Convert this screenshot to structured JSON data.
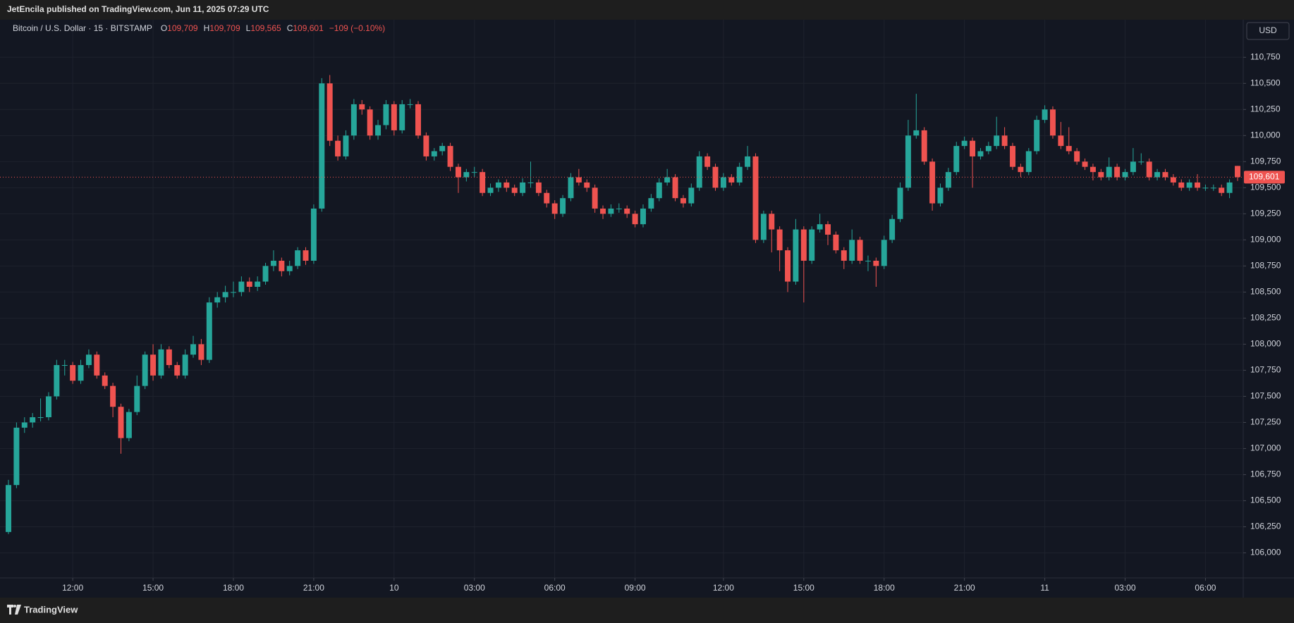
{
  "header": {
    "publisher": "JetEncila published on TradingView.com, Jun 11, 2025 07:29 UTC",
    "currency_button": "USD"
  },
  "footer": {
    "brand": "TradingView"
  },
  "chart_data": {
    "type": "candlestick",
    "title": "Bitcoin / U.S. Dollar · 15 · BITSTAMP",
    "legend": [
      {
        "key": "O",
        "value": "109,709"
      },
      {
        "key": "H",
        "value": "109,709"
      },
      {
        "key": "L",
        "value": "109,565"
      },
      {
        "key": "C",
        "value": "109,601"
      }
    ],
    "change": "−109 (−0.10%)",
    "up_color": "#26a69a",
    "down_color": "#ef5350",
    "grid": true,
    "last_price": {
      "value": 109601,
      "label": "109,601"
    },
    "ylim": [
      105760,
      111110
    ],
    "yticks": [
      {
        "value": 106000,
        "label": "106,000"
      },
      {
        "value": 106250,
        "label": "106,250"
      },
      {
        "value": 106500,
        "label": "106,500"
      },
      {
        "value": 106750,
        "label": "106,750"
      },
      {
        "value": 107000,
        "label": "107,000"
      },
      {
        "value": 107250,
        "label": "107,250"
      },
      {
        "value": 107500,
        "label": "107,500"
      },
      {
        "value": 107750,
        "label": "107,750"
      },
      {
        "value": 108000,
        "label": "108,000"
      },
      {
        "value": 108250,
        "label": "108,250"
      },
      {
        "value": 108500,
        "label": "108,500"
      },
      {
        "value": 108750,
        "label": "108,750"
      },
      {
        "value": 109000,
        "label": "109,000"
      },
      {
        "value": 109250,
        "label": "109,250"
      },
      {
        "value": 109500,
        "label": "109,500"
      },
      {
        "value": 109750,
        "label": "109,750"
      },
      {
        "value": 110000,
        "label": "110,000"
      },
      {
        "value": 110250,
        "label": "110,250"
      },
      {
        "value": 110500,
        "label": "110,500"
      },
      {
        "value": 110750,
        "label": "110,750"
      }
    ],
    "xticks": [
      {
        "value": 8,
        "label": "12:00"
      },
      {
        "value": 18,
        "label": "15:00"
      },
      {
        "value": 28,
        "label": "18:00"
      },
      {
        "value": 38,
        "label": "21:00"
      },
      {
        "value": 48,
        "label": "10"
      },
      {
        "value": 58,
        "label": "03:00"
      },
      {
        "value": 68,
        "label": "06:00"
      },
      {
        "value": 78,
        "label": "09:00"
      },
      {
        "value": 89,
        "label": "12:00"
      },
      {
        "value": 99,
        "label": "15:00"
      },
      {
        "value": 109,
        "label": "18:00"
      },
      {
        "value": 119,
        "label": "21:00"
      },
      {
        "value": 129,
        "label": "11"
      },
      {
        "value": 139,
        "label": "03:00"
      },
      {
        "value": 149,
        "label": "06:00"
      }
    ],
    "ohlc": [
      [
        106200,
        106700,
        106180,
        106650
      ],
      [
        106650,
        107250,
        106620,
        107200
      ],
      [
        107200,
        107300,
        107150,
        107250
      ],
      [
        107250,
        107340,
        107200,
        107300
      ],
      [
        107300,
        107480,
        107260,
        107300
      ],
      [
        107300,
        107540,
        107270,
        107500
      ],
      [
        107500,
        107850,
        107470,
        107800
      ],
      [
        107800,
        107850,
        107700,
        107800
      ],
      [
        107800,
        107830,
        107620,
        107650
      ],
      [
        107650,
        107850,
        107620,
        107800
      ],
      [
        107800,
        107950,
        107770,
        107900
      ],
      [
        107900,
        107930,
        107670,
        107700
      ],
      [
        107700,
        107730,
        107570,
        107600
      ],
      [
        107600,
        107630,
        107300,
        107400
      ],
      [
        107400,
        107430,
        106950,
        107100
      ],
      [
        107100,
        107380,
        107070,
        107350
      ],
      [
        107350,
        107700,
        107320,
        107600
      ],
      [
        107600,
        107930,
        107570,
        107900
      ],
      [
        107900,
        108000,
        107650,
        107700
      ],
      [
        107700,
        108000,
        107670,
        107950
      ],
      [
        107950,
        107980,
        107770,
        107800
      ],
      [
        107800,
        107830,
        107670,
        107700
      ],
      [
        107700,
        107950,
        107670,
        107900
      ],
      [
        107900,
        108080,
        107870,
        108000
      ],
      [
        108000,
        108050,
        107800,
        107850
      ],
      [
        107850,
        108450,
        107820,
        108400
      ],
      [
        108400,
        108500,
        108350,
        108450
      ],
      [
        108450,
        108560,
        108400,
        108500
      ],
      [
        108500,
        108600,
        108450,
        108500
      ],
      [
        108500,
        108650,
        108460,
        108600
      ],
      [
        108600,
        108640,
        108500,
        108550
      ],
      [
        108550,
        108650,
        108510,
        108600
      ],
      [
        108600,
        108780,
        108570,
        108750
      ],
      [
        108750,
        108900,
        108700,
        108800
      ],
      [
        108800,
        108830,
        108650,
        108700
      ],
      [
        108700,
        108800,
        108660,
        108750
      ],
      [
        108750,
        108930,
        108720,
        108900
      ],
      [
        108900,
        108930,
        108760,
        108800
      ],
      [
        108800,
        109340,
        108770,
        109300
      ],
      [
        109300,
        110550,
        109270,
        110500
      ],
      [
        110500,
        110580,
        109900,
        109950
      ],
      [
        109950,
        110000,
        109760,
        109800
      ],
      [
        109800,
        110050,
        109770,
        110000
      ],
      [
        110000,
        110350,
        109960,
        110300
      ],
      [
        110300,
        110340,
        110200,
        110250
      ],
      [
        110250,
        110280,
        109960,
        110000
      ],
      [
        110000,
        110150,
        109960,
        110100
      ],
      [
        110100,
        110340,
        110060,
        110300
      ],
      [
        110300,
        110330,
        110000,
        110050
      ],
      [
        110050,
        110340,
        110020,
        110300
      ],
      [
        110300,
        110350,
        110260,
        110300
      ],
      [
        110300,
        110330,
        109970,
        110000
      ],
      [
        110000,
        110030,
        109760,
        109800
      ],
      [
        109800,
        109880,
        109760,
        109850
      ],
      [
        109850,
        109930,
        109810,
        109900
      ],
      [
        109900,
        109930,
        109660,
        109700
      ],
      [
        109700,
        109730,
        109450,
        109600
      ],
      [
        109600,
        109680,
        109560,
        109650
      ],
      [
        109650,
        109700,
        109600,
        109650
      ],
      [
        109650,
        109680,
        109420,
        109450
      ],
      [
        109450,
        109540,
        109420,
        109500
      ],
      [
        109500,
        109580,
        109460,
        109550
      ],
      [
        109550,
        109580,
        109460,
        109500
      ],
      [
        109500,
        109530,
        109420,
        109450
      ],
      [
        109450,
        109590,
        109420,
        109550
      ],
      [
        109550,
        109750,
        109500,
        109550
      ],
      [
        109550,
        109580,
        109420,
        109450
      ],
      [
        109450,
        109480,
        109310,
        109350
      ],
      [
        109350,
        109380,
        109200,
        109250
      ],
      [
        109250,
        109430,
        109220,
        109400
      ],
      [
        109400,
        109640,
        109370,
        109600
      ],
      [
        109600,
        109680,
        109520,
        109550
      ],
      [
        109550,
        109580,
        109460,
        109500
      ],
      [
        109500,
        109530,
        109260,
        109300
      ],
      [
        109300,
        109330,
        109200,
        109250
      ],
      [
        109250,
        109340,
        109220,
        109300
      ],
      [
        109300,
        109350,
        109260,
        109300
      ],
      [
        109300,
        109330,
        109210,
        109250
      ],
      [
        109250,
        109280,
        109120,
        109150
      ],
      [
        109150,
        109340,
        109120,
        109300
      ],
      [
        109300,
        109440,
        109270,
        109400
      ],
      [
        109400,
        109590,
        109370,
        109550
      ],
      [
        109550,
        109680,
        109520,
        109600
      ],
      [
        109600,
        109630,
        109370,
        109400
      ],
      [
        109400,
        109430,
        109310,
        109350
      ],
      [
        109350,
        109540,
        109320,
        109500
      ],
      [
        109500,
        109850,
        109470,
        109800
      ],
      [
        109800,
        109830,
        109670,
        109700
      ],
      [
        109700,
        109730,
        109470,
        109500
      ],
      [
        109500,
        109640,
        109470,
        109600
      ],
      [
        109600,
        109630,
        109520,
        109550
      ],
      [
        109550,
        109740,
        109520,
        109700
      ],
      [
        109700,
        109900,
        109670,
        109800
      ],
      [
        109800,
        109830,
        108970,
        109000
      ],
      [
        109000,
        109280,
        108970,
        109250
      ],
      [
        109250,
        109280,
        108880,
        109100
      ],
      [
        109100,
        109130,
        108700,
        108900
      ],
      [
        108900,
        108930,
        108500,
        108600
      ],
      [
        108600,
        109200,
        108570,
        109100
      ],
      [
        109100,
        109130,
        108400,
        108800
      ],
      [
        108800,
        109130,
        108770,
        109100
      ],
      [
        109100,
        109250,
        109070,
        109150
      ],
      [
        109150,
        109180,
        108950,
        109050
      ],
      [
        109050,
        109080,
        108870,
        108900
      ],
      [
        108900,
        108930,
        108720,
        108800
      ],
      [
        108800,
        109100,
        108770,
        109000
      ],
      [
        109000,
        109030,
        108770,
        108800
      ],
      [
        108800,
        108850,
        108700,
        108800
      ],
      [
        108800,
        108830,
        108550,
        108750
      ],
      [
        108750,
        109040,
        108720,
        109000
      ],
      [
        109000,
        109240,
        108970,
        109200
      ],
      [
        109200,
        109550,
        109170,
        109500
      ],
      [
        109500,
        110150,
        109470,
        110000
      ],
      [
        110000,
        110400,
        109970,
        110050
      ],
      [
        110050,
        110080,
        109720,
        109750
      ],
      [
        109750,
        109780,
        109280,
        109350
      ],
      [
        109350,
        109540,
        109320,
        109500
      ],
      [
        109500,
        109690,
        109470,
        109650
      ],
      [
        109650,
        109940,
        109620,
        109900
      ],
      [
        109900,
        109990,
        109870,
        109950
      ],
      [
        109950,
        109980,
        109500,
        109800
      ],
      [
        109800,
        109880,
        109770,
        109850
      ],
      [
        109850,
        109940,
        109820,
        109900
      ],
      [
        109900,
        110180,
        109870,
        110000
      ],
      [
        110000,
        110080,
        109870,
        109900
      ],
      [
        109900,
        109930,
        109670,
        109700
      ],
      [
        109700,
        109730,
        109600,
        109650
      ],
      [
        109650,
        109880,
        109620,
        109850
      ],
      [
        109850,
        110190,
        109820,
        110150
      ],
      [
        110150,
        110290,
        110120,
        110250
      ],
      [
        110250,
        110280,
        109970,
        110000
      ],
      [
        110000,
        110130,
        109870,
        109900
      ],
      [
        109900,
        110080,
        109820,
        109850
      ],
      [
        109850,
        109880,
        109720,
        109750
      ],
      [
        109750,
        109780,
        109670,
        109700
      ],
      [
        109700,
        109730,
        109570,
        109650
      ],
      [
        109650,
        109680,
        109570,
        109600
      ],
      [
        109600,
        109790,
        109570,
        109700
      ],
      [
        109700,
        109730,
        109570,
        109600
      ],
      [
        109600,
        109680,
        109570,
        109650
      ],
      [
        109650,
        109880,
        109620,
        109750
      ],
      [
        109750,
        109830,
        109720,
        109750
      ],
      [
        109750,
        109780,
        109570,
        109600
      ],
      [
        109600,
        109680,
        109570,
        109650
      ],
      [
        109650,
        109680,
        109570,
        109600
      ],
      [
        109600,
        109630,
        109520,
        109550
      ],
      [
        109550,
        109580,
        109470,
        109500
      ],
      [
        109500,
        109580,
        109470,
        109550
      ],
      [
        109550,
        109630,
        109470,
        109500
      ],
      [
        109500,
        109530,
        109470,
        109500
      ],
      [
        109500,
        109530,
        109470,
        109500
      ],
      [
        109500,
        109530,
        109420,
        109450
      ],
      [
        109450,
        109580,
        109400,
        109550
      ],
      [
        109709,
        109709,
        109565,
        109601
      ]
    ]
  }
}
